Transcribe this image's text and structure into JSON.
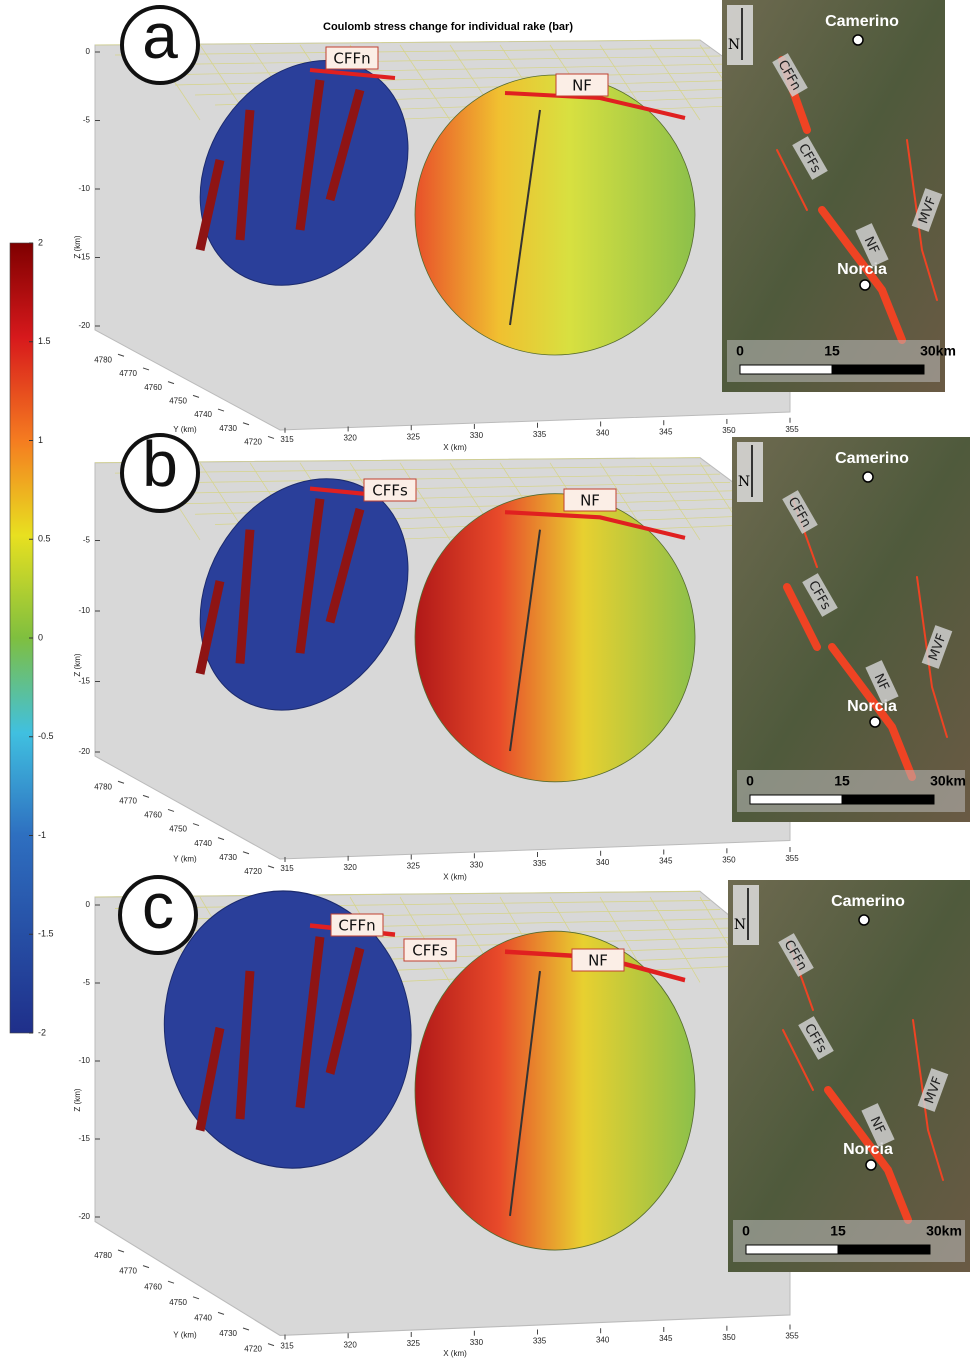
{
  "title": "Coulomb stress change for individual rake (bar)",
  "colorbar": {
    "lim": [
      -2,
      2
    ],
    "ticks": [
      2,
      1.5,
      1,
      0.5,
      0,
      -0.5,
      -1,
      -1.5,
      -2
    ]
  },
  "panels": [
    {
      "label": "a",
      "faults": [
        "CFFn",
        "NF"
      ],
      "z_axis": {
        "title": "Z (km)",
        "ticks": [
          0,
          -5,
          -10,
          -15,
          -20
        ]
      },
      "y_axis": {
        "title": "Y (km)",
        "ticks": [
          4780,
          4770,
          4760,
          4750,
          4740,
          4730,
          4720
        ]
      },
      "x_axis": {
        "title": "X (km)",
        "ticks": [
          315,
          320,
          325,
          330,
          335,
          340,
          345,
          350,
          355
        ]
      },
      "map": {
        "north": "N",
        "places": [
          "Camerino",
          "Norcia"
        ],
        "faults": [
          "CFFn",
          "CFFs",
          "MVF",
          "NF"
        ],
        "scale": [
          "0",
          "15",
          "30km"
        ]
      }
    },
    {
      "label": "b",
      "faults": [
        "CFFs",
        "NF"
      ],
      "z_axis": {
        "title": "Z (km)",
        "ticks": [
          -5,
          -10,
          -15,
          -20
        ]
      },
      "y_axis": {
        "title": "Y (km)",
        "ticks": [
          4780,
          4770,
          4760,
          4750,
          4740,
          4730,
          4720
        ]
      },
      "x_axis": {
        "title": "X (km)",
        "ticks": [
          315,
          320,
          325,
          330,
          335,
          340,
          345,
          350,
          355
        ]
      },
      "map": {
        "north": "N",
        "places": [
          "Camerino",
          "Norcia"
        ],
        "faults": [
          "CFFn",
          "CFFs",
          "MVF",
          "NF"
        ],
        "scale": [
          "0",
          "15",
          "30km"
        ]
      }
    },
    {
      "label": "c",
      "faults": [
        "CFFn",
        "CFFs",
        "NF"
      ],
      "z_axis": {
        "title": "Z (km)",
        "ticks": [
          0,
          -5,
          -10,
          -15,
          -20
        ]
      },
      "y_axis": {
        "title": "Y (km)",
        "ticks": [
          4780,
          4770,
          4760,
          4750,
          4740,
          4730,
          4720
        ]
      },
      "x_axis": {
        "title": "X (km)",
        "ticks": [
          315,
          320,
          325,
          330,
          335,
          340,
          345,
          350,
          355
        ]
      },
      "map": {
        "north": "N",
        "places": [
          "Camerino",
          "Norcia"
        ],
        "faults": [
          "CFFn",
          "CFFs",
          "MVF",
          "NF"
        ],
        "scale": [
          "0",
          "15",
          "30km"
        ]
      }
    }
  ]
}
